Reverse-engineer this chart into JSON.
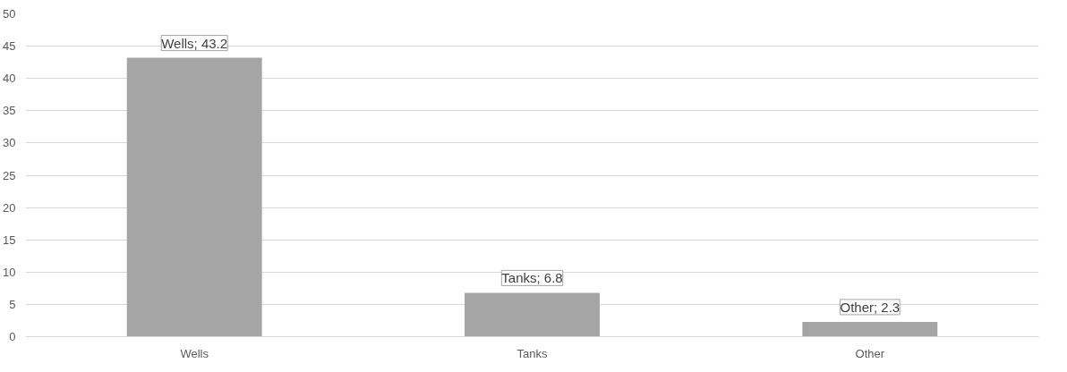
{
  "chart_data": {
    "type": "bar",
    "categories": [
      "Wells",
      "Tanks",
      "Other"
    ],
    "values": [
      43.2,
      6.8,
      2.3
    ],
    "color": "#a5a5a5",
    "value_labels": [
      "Wells; 43.2",
      "Tanks; 6.8",
      "Other; 2.3"
    ],
    "ylim": [
      0,
      50
    ],
    "yticks": [
      0,
      5,
      10,
      15,
      20,
      25,
      30,
      35,
      40,
      45,
      50
    ],
    "grid": "y"
  }
}
